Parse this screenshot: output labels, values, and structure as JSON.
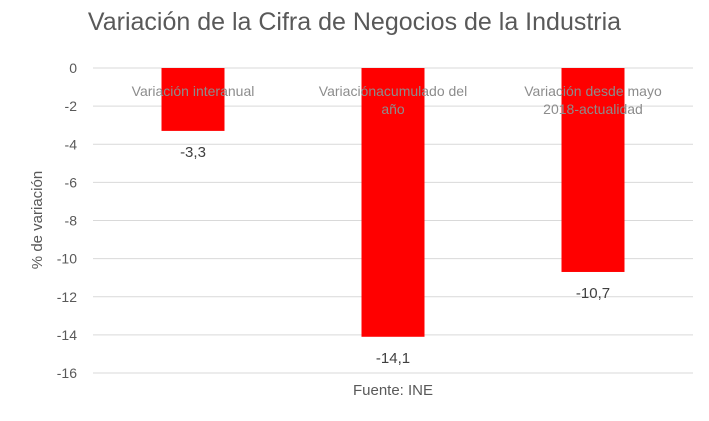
{
  "chart_data": {
    "type": "bar",
    "title": "Variación de la Cifra de Negocios de la Industria",
    "ylabel": "% de variación",
    "xlabel": "Fuente: INE",
    "categories": [
      [
        "Variación interanual"
      ],
      [
        "Variaciónacumulado del",
        "año"
      ],
      [
        "Variación desde mayo",
        "2018-actualidad"
      ]
    ],
    "values": [
      -3.3,
      -14.1,
      -10.7
    ],
    "data_labels": [
      "-3,3",
      "-14,1",
      "-10,7"
    ],
    "ylim": [
      -16,
      0
    ],
    "yticks": [
      0,
      -2,
      -4,
      -6,
      -8,
      -10,
      -12,
      -14,
      -16
    ],
    "ytick_labels": [
      "0",
      "-2",
      "-4",
      "-6",
      "-8",
      "-10",
      "-12",
      "-14",
      "-16"
    ],
    "grid": true,
    "bar_color": "#ff0000",
    "grid_color": "#d9d9d9"
  }
}
